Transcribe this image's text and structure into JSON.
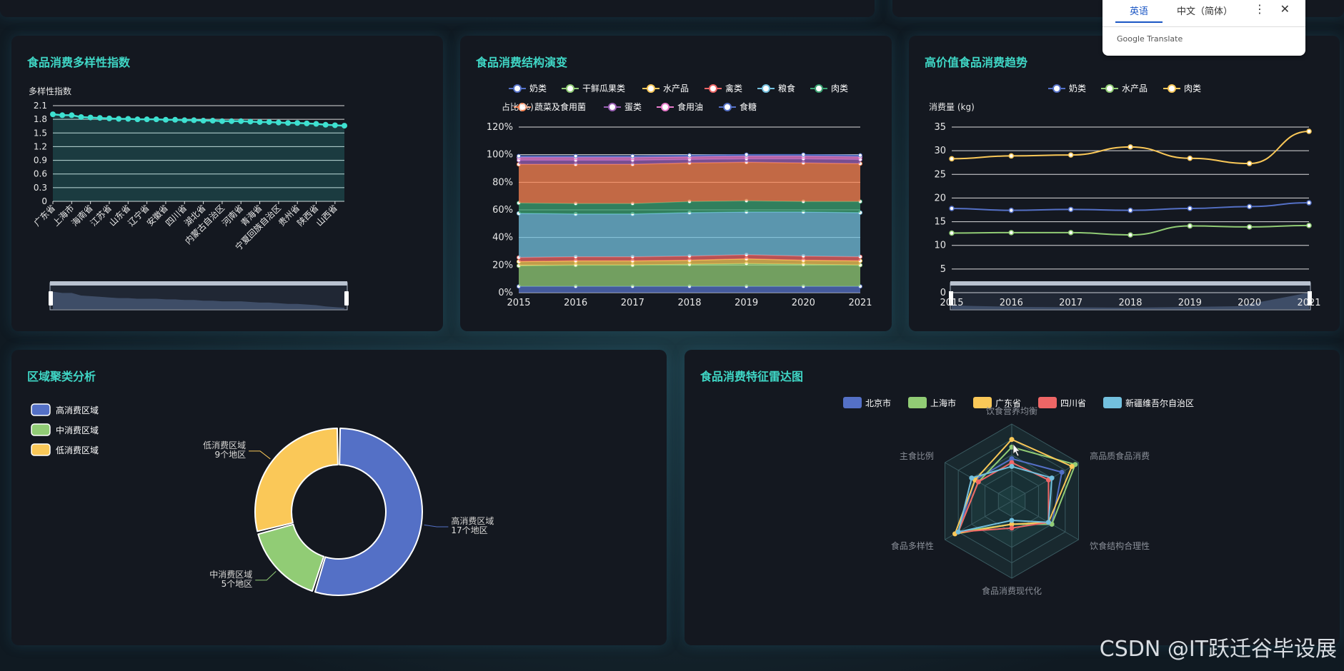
{
  "panels": {
    "diversity": {
      "title": "食品消费多样性指数"
    },
    "structure": {
      "title": "食品消费结构演变"
    },
    "highvalue": {
      "title": "高价值食品消费趋势"
    },
    "cluster": {
      "title": "区域聚类分析"
    },
    "radar": {
      "title": "食品消费特征雷达图"
    }
  },
  "translate_popup": {
    "tab_active": "英语",
    "tab_other": "中文（简体）",
    "menu_icon": "more-vert-icon",
    "close_icon": "close-icon",
    "brand": "Google Translate"
  },
  "watermark": "CSDN @IT跃迁谷毕设展",
  "chart_data": [
    {
      "id": "diversity",
      "type": "area",
      "ylabel": "多样性指数",
      "ylim": [
        0,
        2.1
      ],
      "yticks": [
        "0",
        "0.3",
        "0.6",
        "0.9",
        "1.2",
        "1.5",
        "1.8",
        "2.1"
      ],
      "categories": [
        "广东省",
        "上海市",
        "海南省",
        "江苏省",
        "山东省",
        "辽宁省",
        "安徽省",
        "四川省",
        "湖北省",
        "内蒙古自治区",
        "河南省",
        "青海省",
        "宁夏回族自治区",
        "贵州省",
        "陕西省",
        "山西省"
      ],
      "x": [
        "广东省",
        "",
        "上海市",
        "",
        "海南省",
        "",
        "江苏省",
        "",
        "山东省",
        "",
        "辽宁省",
        "",
        "安徽省",
        "",
        "四川省",
        "",
        "湖北省",
        "",
        "内蒙古自治区",
        "",
        "河南省",
        "",
        "青海省",
        "",
        "宁夏回族自治区",
        "",
        "贵州省",
        "",
        "陕西省",
        "",
        "山西省",
        ""
      ],
      "values": [
        1.91,
        1.89,
        1.89,
        1.85,
        1.84,
        1.83,
        1.82,
        1.81,
        1.81,
        1.8,
        1.8,
        1.8,
        1.79,
        1.79,
        1.78,
        1.78,
        1.77,
        1.77,
        1.76,
        1.76,
        1.76,
        1.75,
        1.74,
        1.74,
        1.73,
        1.72,
        1.72,
        1.71,
        1.7,
        1.68,
        1.67,
        1.66
      ],
      "color": "#3ee0d0"
    },
    {
      "id": "structure",
      "type": "area",
      "stacked": true,
      "ylabel": "占比(%)",
      "ylim": [
        0,
        120
      ],
      "yticks": [
        "0%",
        "20%",
        "40%",
        "60%",
        "80%",
        "100%",
        "120%"
      ],
      "categories": [
        "2015",
        "2016",
        "2017",
        "2018",
        "2019",
        "2020",
        "2021"
      ],
      "legend": [
        "奶类",
        "干鲜瓜果类",
        "水产品",
        "禽类",
        "粮食",
        "肉类",
        "蔬菜及食用菌",
        "蛋类",
        "食用油",
        "食糖"
      ],
      "series": [
        {
          "name": "奶类",
          "color": "#5470c6",
          "values": [
            4.5,
            4.5,
            4.5,
            4.5,
            4.5,
            4.5,
            4.5
          ]
        },
        {
          "name": "干鲜瓜果类",
          "color": "#91cc75",
          "values": [
            15,
            15.5,
            15.5,
            16,
            16.5,
            16,
            15.5
          ]
        },
        {
          "name": "水产品",
          "color": "#fac858",
          "values": [
            3,
            3,
            3,
            3,
            3.5,
            3,
            3
          ]
        },
        {
          "name": "禽类",
          "color": "#ee6666",
          "values": [
            3,
            3,
            3,
            3,
            3,
            3,
            3
          ]
        },
        {
          "name": "粮食",
          "color": "#73c0de",
          "values": [
            32,
            31,
            31,
            31.5,
            31,
            32,
            32
          ]
        },
        {
          "name": "肉类",
          "color": "#3ba272",
          "values": [
            7.5,
            7.5,
            7.5,
            8,
            8,
            7.5,
            8
          ]
        },
        {
          "name": "蔬菜及食用菌",
          "color": "#fc8452",
          "values": [
            28,
            28.5,
            28.5,
            28,
            28,
            28,
            27.5
          ]
        },
        {
          "name": "蛋类",
          "color": "#9a60b4",
          "values": [
            3,
            3,
            3,
            2.5,
            2.5,
            3,
            3
          ]
        },
        {
          "name": "食用油",
          "color": "#ea7ccc",
          "values": [
            2,
            2,
            2,
            2,
            2,
            2,
            2
          ]
        },
        {
          "name": "食糖",
          "color": "#5470c6",
          "values": [
            1,
            1,
            1,
            1,
            1,
            1,
            1
          ]
        }
      ]
    },
    {
      "id": "highvalue",
      "type": "line",
      "ylabel": "消费量 (kg)",
      "ylim": [
        0,
        35
      ],
      "yticks": [
        "0",
        "5",
        "10",
        "15",
        "20",
        "25",
        "30",
        "35"
      ],
      "categories": [
        "2015",
        "2016",
        "2017",
        "2018",
        "2019",
        "2020",
        "2021"
      ],
      "legend": [
        "奶类",
        "水产品",
        "肉类"
      ],
      "series": [
        {
          "name": "奶类",
          "color": "#5470c6",
          "values": [
            17.8,
            17.4,
            17.6,
            17.4,
            17.8,
            18.2,
            19.0
          ]
        },
        {
          "name": "水产品",
          "color": "#91cc75",
          "values": [
            12.6,
            12.7,
            12.7,
            12.2,
            14.1,
            13.9,
            14.2
          ]
        },
        {
          "name": "肉类",
          "color": "#fac858",
          "values": [
            28.3,
            28.9,
            29.1,
            30.8,
            28.4,
            27.3,
            34.1
          ]
        }
      ]
    },
    {
      "id": "cluster",
      "type": "pie",
      "donut": true,
      "legend": [
        "高消费区域",
        "中消费区域",
        "低消费区域"
      ],
      "slices": [
        {
          "name": "高消费区域",
          "value": 17,
          "label": "高消费区域\n17个地区",
          "color": "#5470c6"
        },
        {
          "name": "中消费区域",
          "value": 5,
          "label": "中消费区域\n5个地区",
          "color": "#91cc75"
        },
        {
          "name": "低消费区域",
          "value": 9,
          "label": "低消费区域\n9个地区",
          "color": "#fac858"
        }
      ]
    },
    {
      "id": "radar",
      "type": "radar",
      "indicators": [
        "饮食营养均衡",
        "高品质食品消费",
        "饮食结构合理性",
        "食品消费现代化",
        "食品多样性",
        "主食比例"
      ],
      "legend": [
        "北京市",
        "上海市",
        "广东省",
        "四川省",
        "新疆维吾尔自治区"
      ],
      "series": [
        {
          "name": "北京市",
          "color": "#5470c6",
          "values": [
            0.55,
            0.75,
            0.6,
            0.3,
            0.8,
            0.55
          ]
        },
        {
          "name": "上海市",
          "color": "#91cc75",
          "values": [
            0.7,
            0.95,
            0.6,
            0.3,
            0.8,
            0.5
          ]
        },
        {
          "name": "广东省",
          "color": "#fac858",
          "values": [
            0.8,
            0.9,
            0.55,
            0.3,
            0.85,
            0.55
          ]
        },
        {
          "name": "四川省",
          "color": "#ee6666",
          "values": [
            0.5,
            0.55,
            0.55,
            0.35,
            0.8,
            0.5
          ]
        },
        {
          "name": "新疆维吾尔自治区",
          "color": "#73c0de",
          "values": [
            0.45,
            0.6,
            0.55,
            0.25,
            0.8,
            0.6
          ]
        }
      ]
    }
  ]
}
